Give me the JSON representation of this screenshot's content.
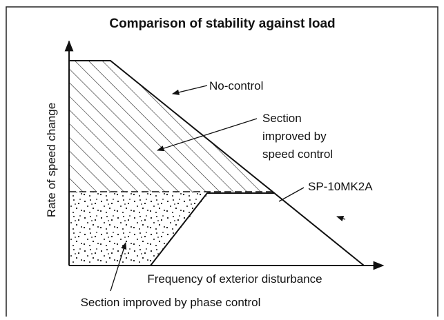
{
  "title": "Comparison of stability against load",
  "y_axis_label": "Rate of speed change",
  "x_axis_label": "Frequency of exterior disturbance",
  "annotations": {
    "no_control": "No-control",
    "speed_control": [
      "Section",
      "improved by",
      "speed control"
    ],
    "sp10mk2a": "SP-10MK2A",
    "phase_control": "Section improved by phase control"
  }
}
